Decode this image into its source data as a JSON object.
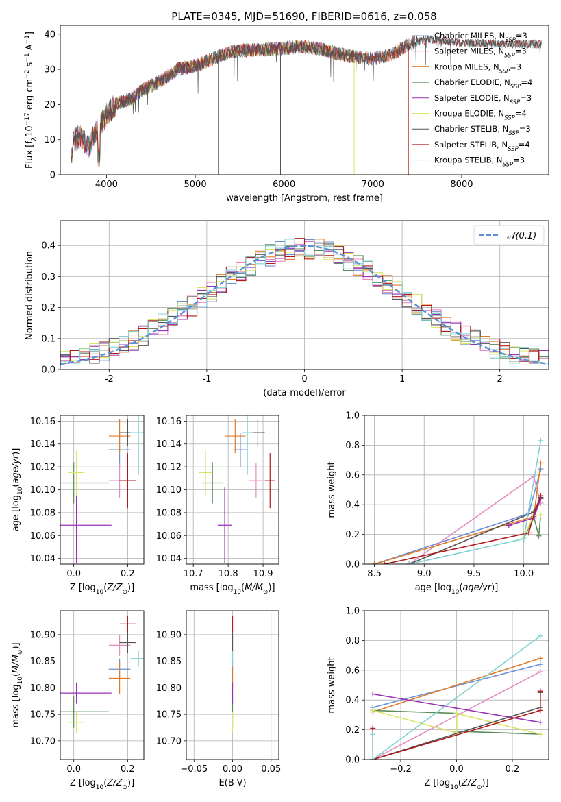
{
  "title": "PLATE=0345, MJD=51690, FIBERID=0616, z=0.058",
  "colors": [
    "#6d8fd6",
    "#e58cc0",
    "#e07b2a",
    "#5c8c5c",
    "#9b30b8",
    "#d9e566",
    "#555555",
    "#b01a1a",
    "#7fd1d1"
  ],
  "legend": [
    {
      "name": "Chabrier MILES, N",
      "sub": "SSP",
      "suffix": "=3"
    },
    {
      "name": "Salpeter MILES, N",
      "sub": "SSP",
      "suffix": "=3"
    },
    {
      "name": "Kroupa MILES, N",
      "sub": "SSP",
      "suffix": "=3"
    },
    {
      "name": "Chabrier ELODIE, N",
      "sub": "SSP",
      "suffix": "=4"
    },
    {
      "name": "Salpeter ELODIE, N",
      "sub": "SSP",
      "suffix": "=3"
    },
    {
      "name": "Kroupa ELODIE, N",
      "sub": "SSP",
      "suffix": "=4"
    },
    {
      "name": "Chabrier STELIB, N",
      "sub": "SSP",
      "suffix": "=3"
    },
    {
      "name": "Salpeter STELIB, N",
      "sub": "SSP",
      "suffix": "=4"
    },
    {
      "name": "Kroupa STELIB, N",
      "sub": "SSP",
      "suffix": "=3"
    }
  ],
  "chart_data": [
    {
      "type": "line",
      "title": "PLATE=0345, MJD=51690, FIBERID=0616, z=0.058",
      "xlabel": "wavelength [Angstrom, rest frame]",
      "ylabel": "Flux [fλ10⁻¹⁷ erg cm⁻² s⁻¹ A⁻¹]",
      "xlim": [
        3480,
        8980
      ],
      "ylim": [
        0,
        42.5
      ],
      "xticks": [
        4000,
        5000,
        6000,
        7000,
        8000
      ],
      "yticks": [
        0,
        10,
        20,
        30,
        40
      ],
      "spectrum_shape": {
        "x": [
          3600,
          3700,
          3800,
          3900,
          4000,
          4100,
          4200,
          4300,
          4400,
          4600,
          4800,
          5000,
          5200,
          5400,
          5600,
          5800,
          6000,
          6200,
          6400,
          6600,
          6800,
          7000,
          7200,
          7400,
          7600,
          7800,
          8000,
          8200,
          8400,
          8600,
          8800
        ],
        "y": [
          9,
          11,
          8,
          13,
          17,
          20,
          21,
          22,
          24,
          26.5,
          30,
          31,
          33,
          35,
          35.5,
          35.7,
          36,
          36.5,
          35.8,
          34.5,
          33.5,
          33,
          34,
          37,
          38.5,
          38.2,
          37.5,
          37.4,
          37.3,
          37.2,
          37.2
        ]
      },
      "series_extent": [
        {
          "name": "Chabrier MILES",
          "x": [
            3600,
            7400
          ]
        },
        {
          "name": "Salpeter MILES",
          "x": [
            3600,
            7400
          ]
        },
        {
          "name": "Kroupa MILES",
          "x": [
            3600,
            7400
          ]
        },
        {
          "name": "Chabrier ELODIE",
          "x": [
            3900,
            6800
          ]
        },
        {
          "name": "Salpeter ELODIE",
          "x": [
            3900,
            6800
          ]
        },
        {
          "name": "Kroupa ELODIE",
          "x": [
            3900,
            6800
          ]
        },
        {
          "name": "Chabrier STELIB",
          "x": [
            3600,
            8900
          ]
        },
        {
          "name": "Salpeter STELIB",
          "x": [
            3600,
            8900
          ]
        },
        {
          "name": "Kroupa STELIB",
          "x": [
            3600,
            8900
          ]
        }
      ]
    },
    {
      "type": "histogram",
      "xlabel": "(data-model)/error",
      "ylabel": "Normed distribution",
      "xlim": [
        -2.5,
        2.5
      ],
      "ylim": [
        0,
        0.48
      ],
      "xticks": [
        -2,
        -1,
        0,
        1,
        2
      ],
      "yticks": [
        0.0,
        0.1,
        0.2,
        0.3,
        0.4
      ],
      "bin_width": 0.1,
      "gaussian_label": "𝒩(0,1)"
    },
    {
      "type": "scatter",
      "xlabel": "Z [log10(Z/Z⊙)]",
      "ylabel": "age  [log10(age/yr)]",
      "xlim": [
        -0.05,
        0.26
      ],
      "ylim": [
        10.035,
        10.165
      ],
      "xticks": [
        0.0,
        0.2
      ],
      "xticklabels": [
        "0.0",
        "0.2"
      ],
      "yticks": [
        10.04,
        10.06,
        10.08,
        10.1,
        10.12,
        10.14,
        10.16
      ],
      "points": [
        {
          "x": 0.17,
          "y": 10.135,
          "xerr": 0.04,
          "yerr": 0.015
        },
        {
          "x": 0.17,
          "y": 10.108,
          "xerr": 0.04,
          "yerr": 0.015
        },
        {
          "x": 0.17,
          "y": 10.147,
          "xerr": 0.04,
          "yerr": 0.015
        },
        {
          "x": 0.0,
          "y": 10.106,
          "xerr": 0.13,
          "yerr": 0.018
        },
        {
          "x": 0.01,
          "y": 10.069,
          "xerr": 0.13,
          "yerr": 0.033
        },
        {
          "x": 0.01,
          "y": 10.115,
          "xerr": 0.03,
          "yerr": 0.02
        },
        {
          "x": 0.2,
          "y": 10.15,
          "xerr": 0.03,
          "yerr": 0.012
        },
        {
          "x": 0.2,
          "y": 10.108,
          "xerr": 0.03,
          "yerr": 0.024
        },
        {
          "x": 0.24,
          "y": 10.15,
          "xerr": 0.03,
          "yerr": 0.037
        }
      ]
    },
    {
      "type": "scatter",
      "xlabel": "mass [log10(M/M⊙)]",
      "ylabel": "",
      "xlim": [
        10.68,
        10.945
      ],
      "ylim": [
        10.035,
        10.165
      ],
      "xticks": [
        10.7,
        10.8,
        10.9
      ],
      "xticklabels": [
        "10.7",
        "10.8",
        "10.9"
      ],
      "yticks": [
        10.04,
        10.06,
        10.08,
        10.1,
        10.12,
        10.14,
        10.16
      ],
      "points": [
        {
          "x": 10.835,
          "y": 10.135,
          "xerr": 0.02,
          "yerr": 0.015
        },
        {
          "x": 10.88,
          "y": 10.108,
          "xerr": 0.02,
          "yerr": 0.015
        },
        {
          "x": 10.82,
          "y": 10.147,
          "xerr": 0.03,
          "yerr": 0.015
        },
        {
          "x": 10.755,
          "y": 10.106,
          "xerr": 0.03,
          "yerr": 0.018
        },
        {
          "x": 10.79,
          "y": 10.069,
          "xerr": 0.02,
          "yerr": 0.033
        },
        {
          "x": 10.735,
          "y": 10.115,
          "xerr": 0.02,
          "yerr": 0.02
        },
        {
          "x": 10.885,
          "y": 10.15,
          "xerr": 0.02,
          "yerr": 0.012
        },
        {
          "x": 10.92,
          "y": 10.108,
          "xerr": 0.015,
          "yerr": 0.024
        },
        {
          "x": 10.855,
          "y": 10.15,
          "xerr": 0.015,
          "yerr": 0.037
        }
      ]
    },
    {
      "type": "line",
      "xlabel": "age  [log10(age/yr)]",
      "ylabel": "mass weight",
      "xlim": [
        8.4,
        10.25
      ],
      "ylim": [
        0,
        1
      ],
      "xticks": [
        8.5,
        9.0,
        9.5,
        10.0
      ],
      "xticklabels": [
        "8.5",
        "9.0",
        "9.5",
        "10.0"
      ],
      "yticks": [
        0,
        0.2,
        0.4,
        0.6,
        0.8,
        1.0
      ],
      "series": [
        {
          "name": "Chabrier MILES",
          "x": [
            8.5,
            10.05,
            10.17
          ],
          "y": [
            0.0,
            0.34,
            0.64
          ]
        },
        {
          "name": "Salpeter MILES",
          "x": [
            8.85,
            10.1,
            10.17
          ],
          "y": [
            0.0,
            0.59,
            0.41
          ]
        },
        {
          "name": "Kroupa MILES",
          "x": [
            8.5,
            10.1,
            10.17
          ],
          "y": [
            0.0,
            0.32,
            0.68
          ]
        },
        {
          "name": "Chabrier ELODIE",
          "x": [
            10.0,
            10.1,
            10.15,
            10.17
          ],
          "y": [
            0.17,
            0.32,
            0.19,
            0.33
          ]
        },
        {
          "name": "Salpeter ELODIE",
          "x": [
            9.85,
            10.1,
            10.17
          ],
          "y": [
            0.26,
            0.31,
            0.44
          ]
        },
        {
          "name": "Kroupa ELODIE",
          "x": [
            10.0,
            10.1,
            10.17
          ],
          "y": [
            0.18,
            0.33,
            0.33
          ]
        },
        {
          "name": "Chabrier STELIB",
          "x": [
            8.85,
            10.1,
            10.17
          ],
          "y": [
            0.0,
            0.35,
            0.45
          ]
        },
        {
          "name": "Salpeter STELIB",
          "x": [
            8.6,
            10.05,
            10.1,
            10.17
          ],
          "y": [
            0.0,
            0.21,
            0.33,
            0.46
          ]
        },
        {
          "name": "Kroupa STELIB",
          "x": [
            8.85,
            10.0,
            10.17
          ],
          "y": [
            0.0,
            0.17,
            0.83
          ]
        }
      ]
    },
    {
      "type": "scatter",
      "xlabel": "Z [log10(Z/Z⊙)]",
      "ylabel": "mass [log10(M/M⊙)]",
      "xlim": [
        -0.05,
        0.26
      ],
      "ylim": [
        10.665,
        10.945
      ],
      "xticks": [
        0.0,
        0.2
      ],
      "xticklabels": [
        "0.0",
        "0.2"
      ],
      "yticks": [
        10.7,
        10.75,
        10.8,
        10.85,
        10.9
      ],
      "points": [
        {
          "x": 0.17,
          "y": 10.835,
          "xerr": 0.04,
          "yerr": 0.02
        },
        {
          "x": 0.17,
          "y": 10.88,
          "xerr": 0.04,
          "yerr": 0.02
        },
        {
          "x": 0.17,
          "y": 10.818,
          "xerr": 0.04,
          "yerr": 0.03
        },
        {
          "x": 0.0,
          "y": 10.755,
          "xerr": 0.13,
          "yerr": 0.03
        },
        {
          "x": 0.01,
          "y": 10.79,
          "xerr": 0.13,
          "yerr": 0.02
        },
        {
          "x": 0.01,
          "y": 10.735,
          "xerr": 0.03,
          "yerr": 0.02
        },
        {
          "x": 0.2,
          "y": 10.885,
          "xerr": 0.03,
          "yerr": 0.02
        },
        {
          "x": 0.2,
          "y": 10.92,
          "xerr": 0.03,
          "yerr": 0.015
        },
        {
          "x": 0.24,
          "y": 10.855,
          "xerr": 0.03,
          "yerr": 0.015
        }
      ]
    },
    {
      "type": "scatter",
      "xlabel": "E(B-V)",
      "ylabel": "",
      "xlim": [
        -0.06,
        0.06
      ],
      "ylim": [
        10.665,
        10.945
      ],
      "xticks": [
        -0.05,
        0.0,
        0.05
      ],
      "xticklabels": [
        "−0.05",
        "0.00",
        "0.05"
      ],
      "yticks": [
        10.7,
        10.75,
        10.8,
        10.85,
        10.9
      ],
      "points": [
        {
          "x": 0,
          "y": 10.835,
          "xerr": 0,
          "yerr": 0.02
        },
        {
          "x": 0,
          "y": 10.88,
          "xerr": 0,
          "yerr": 0.02
        },
        {
          "x": 0,
          "y": 10.818,
          "xerr": 0,
          "yerr": 0.03
        },
        {
          "x": 0,
          "y": 10.755,
          "xerr": 0,
          "yerr": 0.03
        },
        {
          "x": 0,
          "y": 10.79,
          "xerr": 0,
          "yerr": 0.02
        },
        {
          "x": 0,
          "y": 10.735,
          "xerr": 0,
          "yerr": 0.02
        },
        {
          "x": 0,
          "y": 10.885,
          "xerr": 0,
          "yerr": 0.02
        },
        {
          "x": 0,
          "y": 10.92,
          "xerr": 0,
          "yerr": 0.015
        },
        {
          "x": 0,
          "y": 10.855,
          "xerr": 0,
          "yerr": 0.015
        }
      ]
    },
    {
      "type": "line",
      "xlabel": "Z [log10(Z/Z⊙)]",
      "ylabel": "mass weight",
      "xlim": [
        -0.33,
        0.33
      ],
      "ylim": [
        0,
        1
      ],
      "xticks": [
        -0.2,
        0.0,
        0.2
      ],
      "xticklabels": [
        "−0.2",
        "0.0",
        "0.2"
      ],
      "yticks": [
        0,
        0.2,
        0.4,
        0.6,
        0.8,
        1.0
      ],
      "series": [
        {
          "name": "Chabrier MILES",
          "x": [
            -0.3,
            0.3
          ],
          "y": [
            0.35,
            0.64
          ]
        },
        {
          "name": "Salpeter MILES",
          "x": [
            -0.3,
            0.3
          ],
          "y": [
            0.0,
            0.59
          ]
        },
        {
          "name": "Kroupa MILES",
          "x": [
            -0.3,
            0.3
          ],
          "y": [
            0.32,
            0.68
          ]
        },
        {
          "name": "Chabrier ELODIE",
          "x": [
            -0.3,
            0.0,
            0.0,
            0.3
          ],
          "y": [
            0.33,
            0.31,
            0.19,
            0.17
          ]
        },
        {
          "name": "Salpeter ELODIE",
          "x": [
            -0.3,
            0.3
          ],
          "y": [
            0.44,
            0.25
          ]
        },
        {
          "name": "Kroupa ELODIE",
          "x": [
            -0.3,
            0.0,
            0.0,
            0.3
          ],
          "y": [
            0.33,
            0.18,
            0.31,
            0.17
          ]
        },
        {
          "name": "Chabrier STELIB",
          "x": [
            -0.3,
            0.3,
            0.3
          ],
          "y": [
            0.0,
            0.35,
            0.45
          ]
        },
        {
          "name": "Salpeter STELIB",
          "x": [
            -0.3,
            -0.3,
            0.3,
            0.3
          ],
          "y": [
            0.21,
            0.0,
            0.33,
            0.46
          ]
        },
        {
          "name": "Kroupa STELIB",
          "x": [
            -0.3,
            -0.3,
            0.3
          ],
          "y": [
            0.17,
            0.0,
            0.83
          ]
        }
      ]
    }
  ]
}
